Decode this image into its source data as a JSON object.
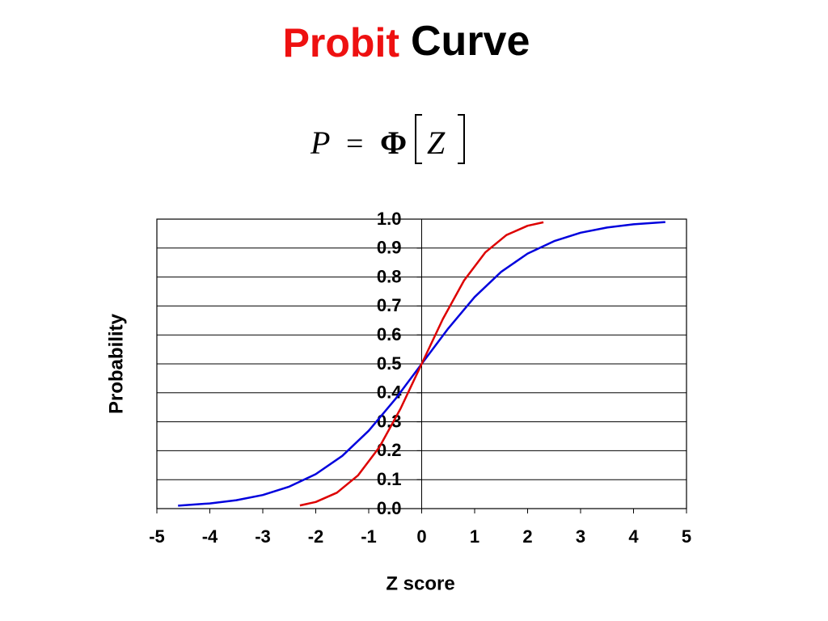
{
  "chart_data": {
    "type": "line",
    "title": {
      "part1": "Probit",
      "part2": "Curve"
    },
    "formula": {
      "lhs": "P",
      "op": "=",
      "func": "Φ",
      "arg": "Z"
    },
    "xlabel": "Z score",
    "ylabel": "Probability",
    "xlim": [
      -5,
      5
    ],
    "xticks": [
      -5,
      -4,
      -3,
      -2,
      -1,
      0,
      1,
      2,
      3,
      4,
      5
    ],
    "ylim": [
      0,
      1
    ],
    "yticks": [
      {
        "value": 0,
        "label": "0.0"
      },
      0.1,
      0.2,
      0.3,
      0.4,
      0.5,
      0.6,
      0.7,
      0.8,
      0.9,
      {
        "value": 1,
        "label": "1.0"
      }
    ],
    "grid": true,
    "series": [
      {
        "color": "#0000dd",
        "x": [
          -4.6,
          -4,
          -3.5,
          -3,
          -2.5,
          -2,
          -1.5,
          -1,
          -0.5,
          0,
          0.5,
          1,
          1.5,
          2,
          2.5,
          3,
          3.5,
          4,
          4.6
        ],
        "values": [
          0.01,
          0.018,
          0.029,
          0.047,
          0.076,
          0.119,
          0.182,
          0.269,
          0.378,
          0.5,
          0.622,
          0.731,
          0.818,
          0.881,
          0.924,
          0.953,
          0.971,
          0.982,
          0.99
        ]
      },
      {
        "color": "#dd0000",
        "x": [
          -2.3,
          -2,
          -1.6,
          -1.2,
          -0.8,
          -0.4,
          0,
          0.4,
          0.8,
          1.2,
          1.6,
          2,
          2.3
        ],
        "values": [
          0.011,
          0.023,
          0.055,
          0.115,
          0.212,
          0.345,
          0.5,
          0.655,
          0.788,
          0.885,
          0.945,
          0.977,
          0.989
        ]
      }
    ]
  }
}
